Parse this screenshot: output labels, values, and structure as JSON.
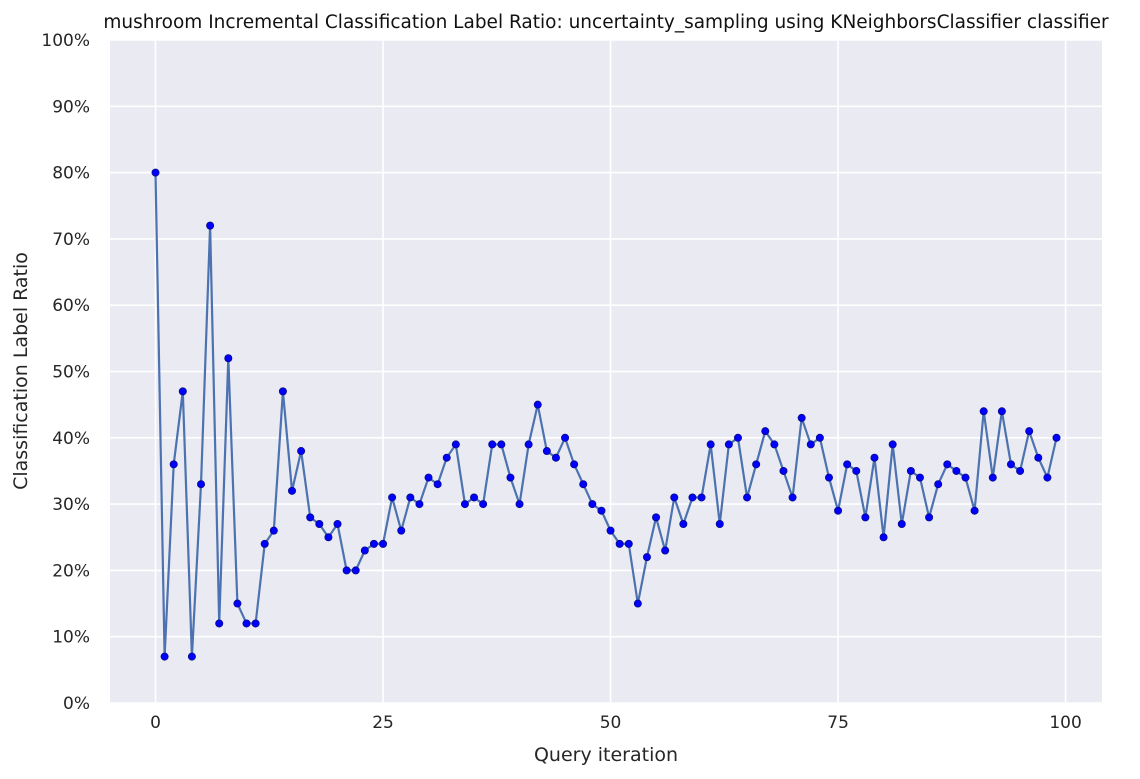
{
  "chart_data": {
    "type": "line",
    "title": "mushroom Incremental Classification Label Ratio: uncertainty_sampling using KNeighborsClassifier classifier",
    "xlabel": "Query iteration",
    "ylabel": "Classification Label Ratio",
    "xlim": [
      -5,
      104
    ],
    "ylim": [
      0,
      1
    ],
    "x_ticks": [
      0,
      25,
      50,
      75,
      100
    ],
    "y_ticks": [
      0,
      0.1,
      0.2,
      0.3,
      0.4,
      0.5,
      0.6,
      0.7,
      0.8,
      0.9,
      1.0
    ],
    "x_tick_labels": [
      "0",
      "25",
      "50",
      "75",
      "100"
    ],
    "y_tick_labels": [
      "0%",
      "10%",
      "20%",
      "30%",
      "40%",
      "50%",
      "60%",
      "70%",
      "80%",
      "90%",
      "100%"
    ],
    "grid": true,
    "series": [
      {
        "x": [
          0,
          1,
          2,
          3,
          4,
          5,
          6,
          7,
          8,
          9,
          10,
          11,
          12,
          13,
          14,
          15,
          16,
          17,
          18,
          19,
          20,
          21,
          22,
          23,
          24,
          25,
          26,
          27,
          28,
          29,
          30,
          31,
          32,
          33,
          34,
          35,
          36,
          37,
          38,
          39,
          40,
          41,
          42,
          43,
          44,
          45,
          46,
          47,
          48,
          49,
          50,
          51,
          52,
          53,
          54,
          55,
          56,
          57,
          58,
          59,
          60,
          61,
          62,
          63,
          64,
          65,
          66,
          67,
          68,
          69,
          70,
          71,
          72,
          73,
          74,
          75,
          76,
          77,
          78,
          79,
          80,
          81,
          82,
          83,
          84,
          85,
          86,
          87,
          88,
          89,
          90,
          91,
          92,
          93,
          94,
          95,
          96,
          97,
          98,
          99
        ],
        "values": [
          0.8,
          0.07,
          0.36,
          0.47,
          0.07,
          0.33,
          0.72,
          0.12,
          0.52,
          0.15,
          0.12,
          0.12,
          0.24,
          0.26,
          0.47,
          0.32,
          0.38,
          0.28,
          0.27,
          0.25,
          0.27,
          0.2,
          0.2,
          0.23,
          0.24,
          0.24,
          0.31,
          0.26,
          0.31,
          0.3,
          0.34,
          0.33,
          0.37,
          0.39,
          0.3,
          0.31,
          0.3,
          0.39,
          0.39,
          0.34,
          0.3,
          0.39,
          0.45,
          0.38,
          0.37,
          0.4,
          0.36,
          0.33,
          0.3,
          0.29,
          0.26,
          0.24,
          0.24,
          0.15,
          0.22,
          0.28,
          0.23,
          0.31,
          0.27,
          0.31,
          0.31,
          0.39,
          0.27,
          0.39,
          0.4,
          0.31,
          0.36,
          0.41,
          0.39,
          0.35,
          0.31,
          0.43,
          0.39,
          0.4,
          0.34,
          0.29,
          0.36,
          0.35,
          0.28,
          0.37,
          0.25,
          0.39,
          0.27,
          0.35,
          0.34,
          0.28,
          0.33,
          0.36,
          0.35,
          0.34,
          0.29,
          0.44,
          0.34,
          0.44,
          0.36,
          0.35,
          0.41,
          0.37,
          0.34,
          0.4
        ]
      }
    ],
    "colors": {
      "background": "#eaeaf2",
      "grid": "#ffffff",
      "line": "#4c72b0",
      "marker": "#0000ff"
    }
  }
}
